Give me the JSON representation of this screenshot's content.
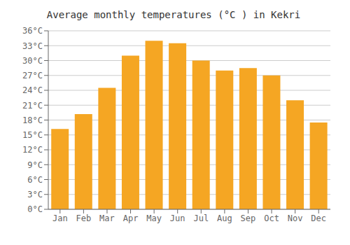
{
  "chart_data": {
    "type": "bar",
    "title": "Average monthly temperatures (°C ) in Kekri",
    "categories": [
      "Jan",
      "Feb",
      "Mar",
      "Apr",
      "May",
      "Jun",
      "Jul",
      "Aug",
      "Sep",
      "Oct",
      "Nov",
      "Dec"
    ],
    "values": [
      16.2,
      19.2,
      24.5,
      31.0,
      34.0,
      33.5,
      30.0,
      28.0,
      28.5,
      27.0,
      22.0,
      17.5
    ],
    "color": "#F5A623",
    "ylim": [
      0,
      36
    ],
    "yticks": [
      {
        "value": 0,
        "label": "0°C"
      },
      {
        "value": 3,
        "label": "3°C"
      },
      {
        "value": 6,
        "label": "6°C"
      },
      {
        "value": 9,
        "label": "9°C"
      },
      {
        "value": 12,
        "label": "12°C"
      },
      {
        "value": 15,
        "label": "15°C"
      },
      {
        "value": 18,
        "label": "18°C"
      },
      {
        "value": 21,
        "label": "21°C"
      },
      {
        "value": 24,
        "label": "24°C"
      },
      {
        "value": 27,
        "label": "27°C"
      },
      {
        "value": 30,
        "label": "30°C"
      },
      {
        "value": 33,
        "label": "33°C"
      },
      {
        "value": 36,
        "label": "36°C"
      }
    ],
    "grid": true
  }
}
